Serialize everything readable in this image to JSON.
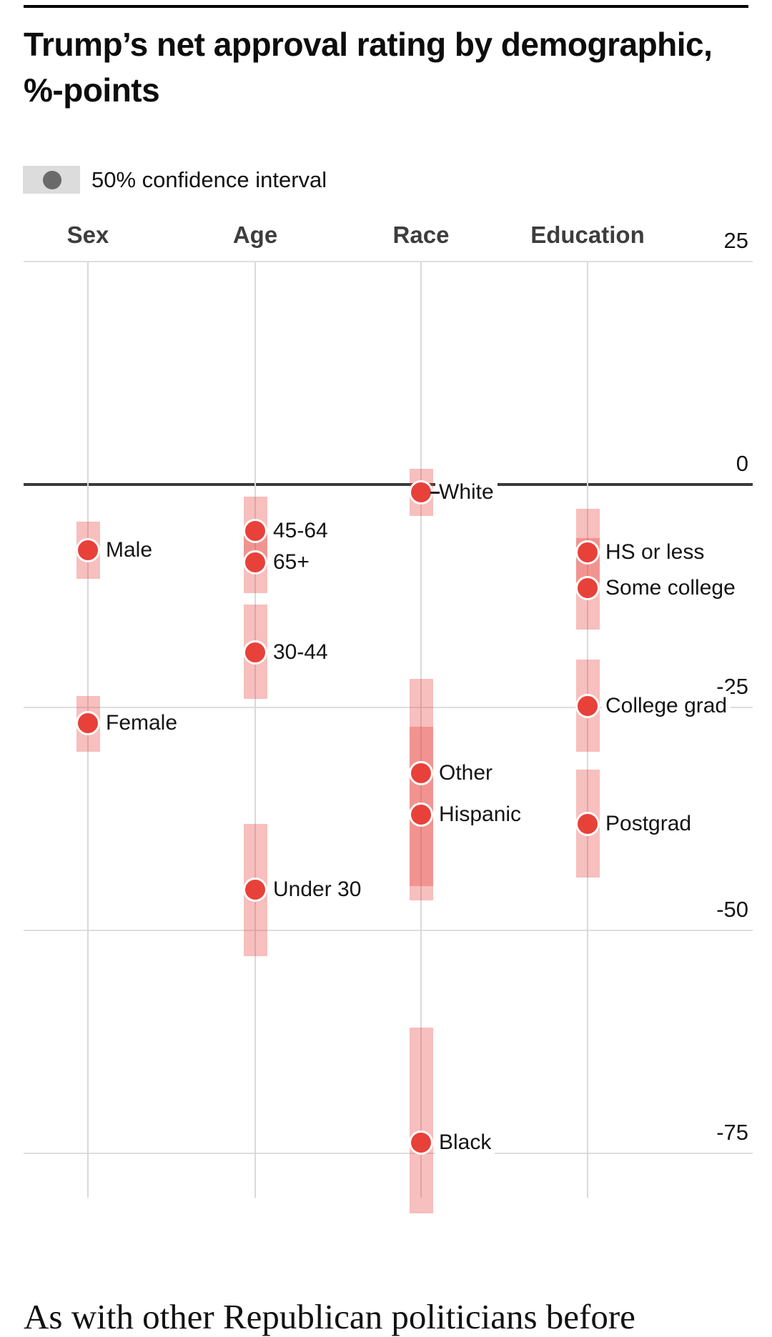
{
  "page": {
    "title_line1": "Trump’s net approval rating by demographic,",
    "title_line2": "%-points",
    "legend_label": "50% confidence interval",
    "bottom_text": "As with other Republican politicians before"
  },
  "colors": {
    "rule": "#000000",
    "title": "#0d0d0d",
    "header": "#3d3d3d",
    "grid": "#dedede",
    "vline": "#d9d9d9",
    "zero": "#3a3a3a",
    "red": "#e8413a",
    "pink": "rgba(232,62,55,0.33)",
    "legendbox": "#dcdcdc",
    "legenddot": "#6a6a6a"
  },
  "chart_data": {
    "type": "scatter",
    "title": "Trump’s net approval rating by demographic, %-points",
    "units": "%-points",
    "legend": "50% confidence interval",
    "grid": true,
    "legend_position": "top-left",
    "ylim": [
      -87,
      25
    ],
    "y_ticks": [
      {
        "label": "25",
        "value": 25
      },
      {
        "label": "0",
        "value": 0
      },
      {
        "label": "-25",
        "value": -25
      },
      {
        "label": "-50",
        "value": -50
      },
      {
        "label": "-75",
        "value": -75
      }
    ],
    "groups": [
      {
        "label": "Sex",
        "items": [
          {
            "label": "Male",
            "value": -7.4,
            "ci": [
              -4.2,
              -10.6
            ]
          },
          {
            "label": "Female",
            "value": -26.8,
            "ci": [
              -23.7,
              -30.0
            ]
          }
        ]
      },
      {
        "label": "Age",
        "items": [
          {
            "label": "45-64",
            "value": -5.2,
            "ci": [
              -1.4,
              -9.0
            ]
          },
          {
            "label": "65+",
            "value": -8.7,
            "ci": [
              -5.0,
              -12.2
            ]
          },
          {
            "label": "30-44",
            "value": -18.8,
            "ci": [
              -13.5,
              -24.0
            ]
          },
          {
            "label": "Under 30",
            "value": -45.4,
            "ci": [
              -38.1,
              -52.9
            ]
          }
        ]
      },
      {
        "label": "Race",
        "items": [
          {
            "label": "White",
            "value": -0.9,
            "ci": [
              1.8,
              -3.5
            ],
            "leader_line": true
          },
          {
            "label": "Other",
            "value": -32.4,
            "ci": [
              -21.8,
              -45.0
            ]
          },
          {
            "label": "Hispanic",
            "value": -37.0,
            "ci": [
              -27.2,
              -46.6
            ]
          },
          {
            "label": "Black",
            "value": -73.8,
            "ci": [
              -60.9,
              -81.7
            ]
          }
        ]
      },
      {
        "label": "Education",
        "items": [
          {
            "label": "HS or less",
            "value": -7.6,
            "ci": [
              -2.7,
              -11.0
            ]
          },
          {
            "label": "Some college",
            "value": -11.6,
            "ci": [
              -6.0,
              -16.3
            ]
          },
          {
            "label": "College grad",
            "value": -24.8,
            "ci": [
              -19.6,
              -30.0
            ]
          },
          {
            "label": "Postgrad",
            "value": -38.1,
            "ci": [
              -32.0,
              -44.1
            ]
          }
        ]
      }
    ]
  }
}
